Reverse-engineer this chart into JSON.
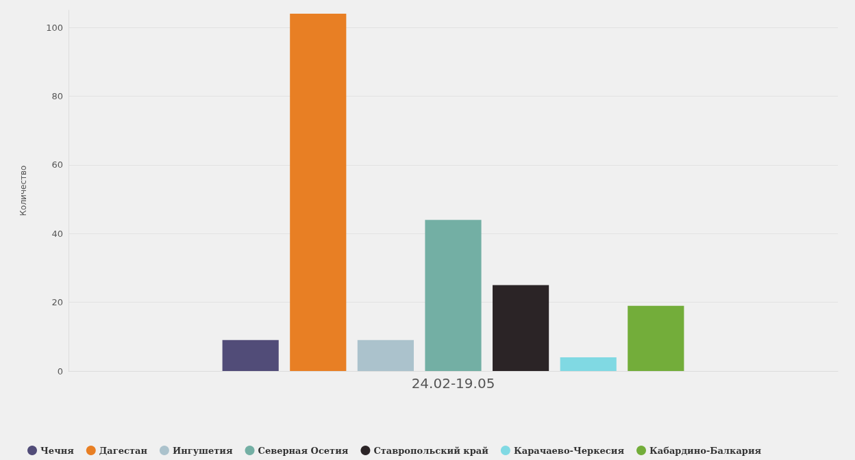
{
  "chart_data": {
    "type": "bar",
    "ylabel": "Количество",
    "categories": [
      "24.02-19.05"
    ],
    "series": [
      {
        "name": "Чечня",
        "color": "#514c78",
        "values": [
          9
        ]
      },
      {
        "name": "Дагестан",
        "color": "#e87f24",
        "values": [
          104
        ]
      },
      {
        "name": "Ингушетия",
        "color": "#abc2cc",
        "values": [
          9
        ]
      },
      {
        "name": "Северная Осетия",
        "color": "#73afa4",
        "values": [
          44
        ]
      },
      {
        "name": "Ставропольский край",
        "color": "#2b2426",
        "values": [
          25
        ]
      },
      {
        "name": "Карачаево-Черкесия",
        "color": "#80d9e3",
        "values": [
          4
        ]
      },
      {
        "name": "Кабардино-Балкария",
        "color": "#73ad3a",
        "values": [
          19
        ]
      }
    ],
    "ylim": [
      0,
      105
    ],
    "yticks": [
      0,
      20,
      40,
      60,
      80,
      100
    ],
    "grid": "y",
    "legend": "bottom"
  }
}
